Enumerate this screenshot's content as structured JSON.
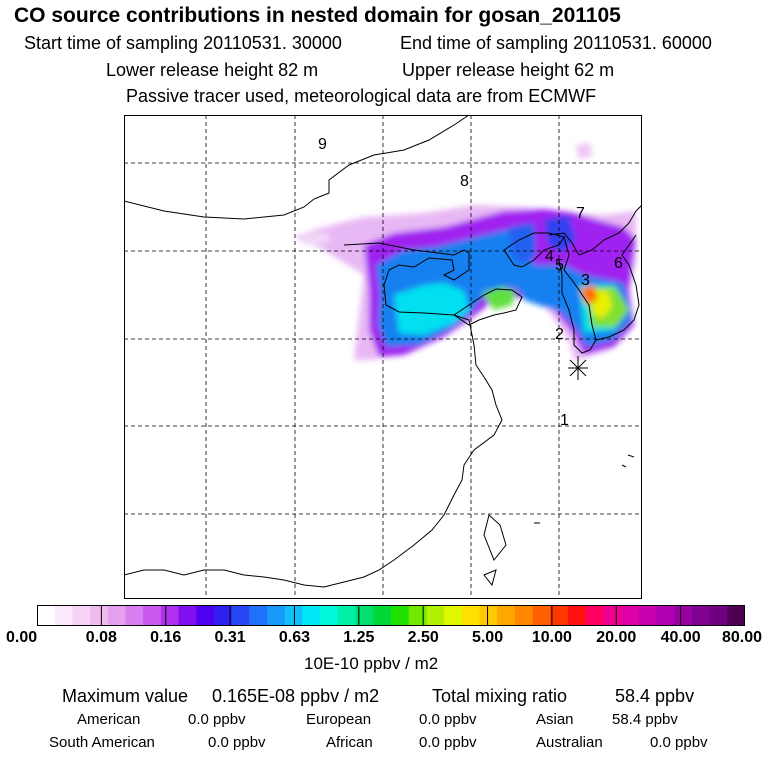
{
  "header": {
    "title": "CO  source contributions in nested domain for gosan_201105",
    "start": "Start time of sampling 20110531. 30000",
    "end": "End time of sampling 20110531. 60000",
    "lower": "Lower release height   82 m",
    "upper": "Upper release height   62 m",
    "note": "Passive tracer used, meteorological data are from ECMWF"
  },
  "map": {
    "point_labels": [
      "1",
      "2",
      "3",
      "4",
      "5",
      "6",
      "7",
      "8",
      "9"
    ]
  },
  "colorbar": {
    "ticks": [
      "0.00",
      "0.08",
      "0.16",
      "0.31",
      "0.63",
      "1.25",
      "2.50",
      "5.00",
      "10.00",
      "20.00",
      "40.00",
      "80.00"
    ],
    "colors": [
      "#ffffff",
      "#fce8fc",
      "#f6d2f6",
      "#f0bcf0",
      "#e6a0f0",
      "#d880f0",
      "#c858f0",
      "#b030f0",
      "#8010f0",
      "#5000f0",
      "#3020f0",
      "#2848f8",
      "#2070f8",
      "#1898f8",
      "#10c0f8",
      "#00e8f8",
      "#00f8d8",
      "#00f0a8",
      "#00e070",
      "#00d838",
      "#20e000",
      "#70e800",
      "#b0f000",
      "#e0f800",
      "#ffe000",
      "#ffc800",
      "#ffa800",
      "#ff8800",
      "#ff6000",
      "#ff3800",
      "#ff1010",
      "#ff0060",
      "#f00090",
      "#e000a8",
      "#c800b0",
      "#b000b0",
      "#9800a0",
      "#800090",
      "#700080",
      "#500050"
    ],
    "units": "10E-10 ppbv / m2"
  },
  "summary": {
    "max_label": "Maximum value",
    "max_value": "0.165E-08 ppbv / m2",
    "total_label": "Total mixing ratio",
    "total_value": "58.4 ppbv",
    "regions": [
      {
        "name": "American",
        "value": "0.0 ppbv"
      },
      {
        "name": "European",
        "value": "0.0 ppbv"
      },
      {
        "name": "Asian",
        "value": "58.4 ppbv"
      },
      {
        "name": "South American",
        "value": "0.0 ppbv"
      },
      {
        "name": "African",
        "value": "0.0 ppbv"
      },
      {
        "name": "Australian",
        "value": "0.0 ppbv"
      }
    ]
  }
}
